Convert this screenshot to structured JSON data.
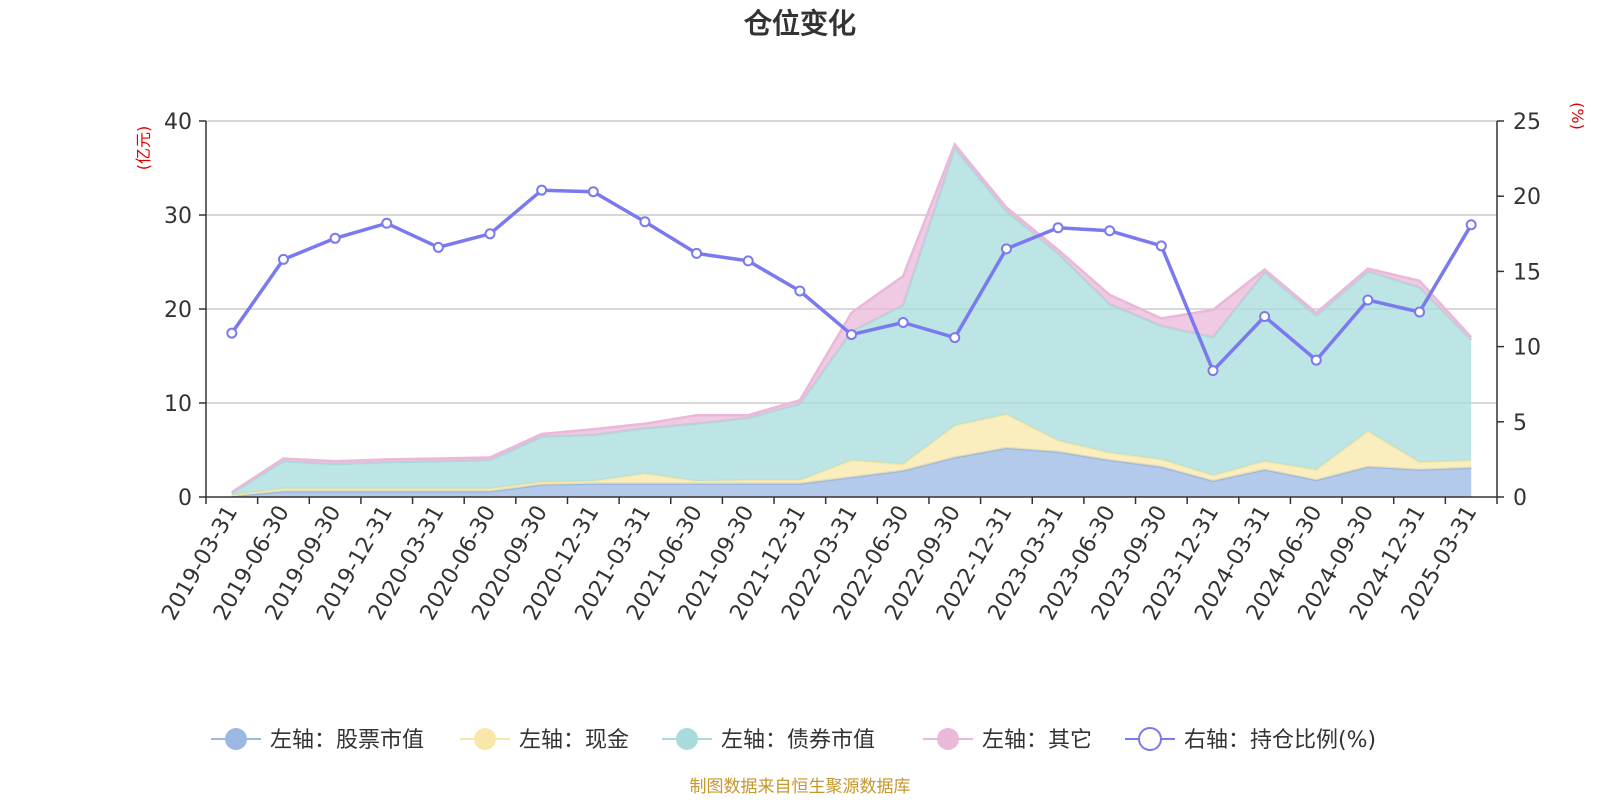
{
  "chart_data": {
    "type": "area",
    "title": "仓位变化",
    "left_axis_unit": "(亿元)",
    "right_axis_unit": "(%)",
    "left_ylim": [
      0,
      40
    ],
    "left_ticks": [
      "0",
      "10",
      "20",
      "30",
      "40"
    ],
    "right_ylim": [
      0,
      25
    ],
    "right_ticks": [
      "0",
      "5",
      "10",
      "15",
      "20",
      "25"
    ],
    "grid": true,
    "legend_position": "bottom",
    "x": [
      "2019-03-31",
      "2019-06-30",
      "2019-09-30",
      "2019-12-31",
      "2020-03-31",
      "2020-06-30",
      "2020-09-30",
      "2020-12-31",
      "2021-03-31",
      "2021-06-30",
      "2021-09-30",
      "2021-12-31",
      "2022-03-31",
      "2022-06-30",
      "2022-09-30",
      "2022-12-31",
      "2023-03-31",
      "2023-06-30",
      "2023-09-30",
      "2023-12-31",
      "2024-03-31",
      "2024-06-30",
      "2024-09-30",
      "2024-12-31",
      "2025-03-31"
    ],
    "series": [
      {
        "name": "左轴：股票市值",
        "axis": "left",
        "stacked": true,
        "color": "#9bb8e3",
        "values": [
          0.1,
          0.6,
          0.6,
          0.6,
          0.6,
          0.6,
          1.3,
          1.4,
          1.4,
          1.4,
          1.4,
          1.4,
          2.1,
          2.8,
          4.2,
          5.2,
          4.8,
          3.9,
          3.2,
          1.7,
          2.9,
          1.8,
          3.2,
          2.9,
          3.1
        ]
      },
      {
        "name": "左轴：现金",
        "axis": "left",
        "stacked": true,
        "color": "#f8e7a8",
        "values": [
          0.1,
          0.3,
          0.3,
          0.3,
          0.3,
          0.3,
          0.3,
          0.3,
          1.1,
          0.3,
          0.4,
          0.4,
          1.8,
          0.7,
          3.4,
          3.6,
          1.2,
          0.8,
          0.8,
          0.6,
          0.9,
          1.1,
          3.8,
          0.8,
          0.8
        ]
      },
      {
        "name": "左轴：债券市值",
        "axis": "left",
        "stacked": true,
        "color": "#a8dcdc",
        "values": [
          0.2,
          2.9,
          2.6,
          2.8,
          2.9,
          3.0,
          4.8,
          4.9,
          4.8,
          6.1,
          6.6,
          8.1,
          13.7,
          16.9,
          29.5,
          21.6,
          19.9,
          15.8,
          14.2,
          14.7,
          20.1,
          16.4,
          17.0,
          18.6,
          12.8
        ]
      },
      {
        "name": "左轴：其它",
        "axis": "left",
        "stacked": true,
        "color": "#eab8d8",
        "values": [
          0.1,
          0.3,
          0.3,
          0.3,
          0.3,
          0.3,
          0.3,
          0.6,
          0.5,
          0.9,
          0.3,
          0.4,
          2.0,
          3.1,
          0.4,
          0.4,
          0.4,
          1.0,
          0.8,
          2.9,
          0.3,
          0.3,
          0.3,
          0.7,
          0.3
        ]
      },
      {
        "name": "右轴：持仓比例(%)",
        "axis": "right",
        "type": "line",
        "color": "#7a7aee",
        "values": [
          10.9,
          15.8,
          17.2,
          18.2,
          16.6,
          17.5,
          20.4,
          20.3,
          18.3,
          16.2,
          15.7,
          13.7,
          10.8,
          11.6,
          10.6,
          16.5,
          17.9,
          17.7,
          16.7,
          8.4,
          12.0,
          9.1,
          13.1,
          12.3,
          18.1
        ]
      }
    ]
  },
  "footer": {
    "source": "制图数据来自恒生聚源数据库"
  }
}
